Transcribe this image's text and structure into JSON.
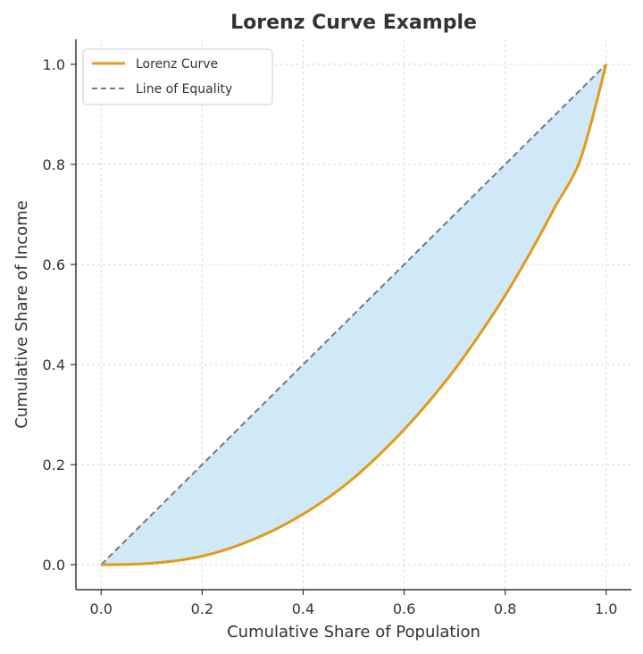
{
  "chart_data": {
    "type": "line",
    "title": "Lorenz Curve Example",
    "xlabel": "Cumulative Share of Population",
    "ylabel": "Cumulative Share of Income",
    "xlim": [
      -0.05,
      1.05
    ],
    "ylim": [
      -0.05,
      1.05
    ],
    "xticks": [
      0.0,
      0.2,
      0.4,
      0.6,
      0.8,
      1.0
    ],
    "yticks": [
      0.0,
      0.2,
      0.4,
      0.6,
      0.8,
      1.0
    ],
    "xtick_labels": [
      "0.0",
      "0.2",
      "0.4",
      "0.6",
      "0.8",
      "1.0"
    ],
    "ytick_labels": [
      "0.0",
      "0.2",
      "0.4",
      "0.6",
      "0.8",
      "1.0"
    ],
    "grid": true,
    "legend_position": "top-left",
    "fill_between": {
      "between": [
        "Line of Equality",
        "Lorenz Curve"
      ],
      "color": "#cfe9f6"
    },
    "series": [
      {
        "name": "Lorenz Curve",
        "color": "#e09b1a",
        "style": "solid",
        "x": [
          0.0,
          0.05,
          0.1,
          0.15,
          0.2,
          0.25,
          0.3,
          0.35,
          0.4,
          0.45,
          0.5,
          0.55,
          0.6,
          0.65,
          0.7,
          0.75,
          0.8,
          0.85,
          0.9,
          0.95,
          1.0
        ],
        "y": [
          0.0,
          0.0004,
          0.003,
          0.008,
          0.017,
          0.031,
          0.05,
          0.073,
          0.101,
          0.134,
          0.173,
          0.219,
          0.27,
          0.327,
          0.39,
          0.461,
          0.538,
          0.624,
          0.717,
          0.813,
          1.0
        ]
      },
      {
        "name": "Line of Equality",
        "color": "#6e7a86",
        "style": "dashed",
        "x": [
          0.0,
          1.0
        ],
        "y": [
          0.0,
          1.0
        ]
      }
    ]
  }
}
